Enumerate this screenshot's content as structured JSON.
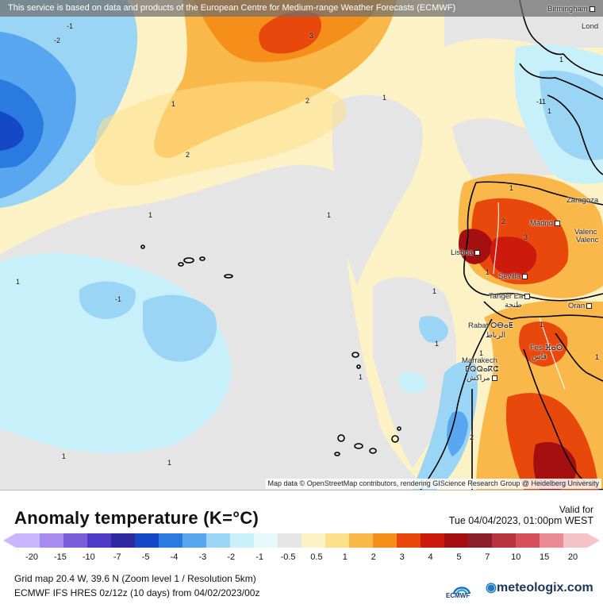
{
  "notice": "This service is based on data and products of the European Centre for Medium-range Weather Forecasts (ECMWF)",
  "attribution": "Map data © OpenStreetMap contributors, rendering GIScience Research Group @ Heidelberg University",
  "cities": [
    {
      "name": "Birmingham"
    },
    {
      "name": "Lond"
    },
    {
      "name": "Zaragoza"
    },
    {
      "name": "Madrid"
    },
    {
      "name": "Valenc"
    },
    {
      "name": "Valenc"
    },
    {
      "name": "Lisboa"
    },
    {
      "name": "Sevilla"
    },
    {
      "name": "Tanger Ea"
    },
    {
      "name": "Oran"
    },
    {
      "name": "Rabat ⵔⴱⴰⵟ"
    },
    {
      "name": "الرباط"
    },
    {
      "name": "Fes ⴼⴰⵙ"
    },
    {
      "name": "فاس"
    },
    {
      "name": "Marrakech"
    },
    {
      "name": "ⵎⵕⵕⴰⴽⵛ"
    },
    {
      "name": "مراكش"
    },
    {
      "name": "طنجة"
    }
  ],
  "contour_labels": [
    "-1",
    "-2",
    "-1",
    "1",
    "2",
    "2",
    "3",
    "1",
    "1",
    "1",
    "-1",
    "1",
    "1",
    "1",
    "1",
    "2",
    "1",
    "1",
    "1",
    "2",
    "3",
    "1",
    "1",
    "-1",
    "1",
    "1",
    "1",
    "1"
  ],
  "legend": {
    "title": "Anomaly temperature (K=°C)",
    "valid_label": "Valid for",
    "valid_date": "Tue 04/04/2023, 01:00pm WEST",
    "ticks": [
      "-20",
      "-15",
      "-10",
      "-7",
      "-5",
      "-4",
      "-3",
      "-2",
      "-1",
      "-0.5",
      "0.5",
      "1",
      "2",
      "3",
      "4",
      "5",
      "7",
      "10",
      "15",
      "20"
    ],
    "colors": [
      "#c9b7ff",
      "#a78bf0",
      "#7a5ddb",
      "#4e3ac6",
      "#2f2aa0",
      "#1448c7",
      "#2a7ae0",
      "#59a6f0",
      "#9ad5f5",
      "#c8f0fa",
      "#e8f9fc",
      "#e5e5e5",
      "#fdf2c5",
      "#fde08a",
      "#fbb84a",
      "#f58f1a",
      "#e9480d",
      "#cc1a0c",
      "#a50f0f",
      "#8c1f2a",
      "#b8343f",
      "#d6505b",
      "#ec8a95",
      "#f6c3cb"
    ],
    "grid_info": "Grid map 20.4 W, 39.6 N (Zoom level 1 / Resolution 5km)",
    "model_info": "ECMWF IFS HRES 0z/12z (10 days) from  04/02/2023/00z",
    "ecmwf_logo": "ECMWF",
    "brand": "meteologix.com"
  }
}
